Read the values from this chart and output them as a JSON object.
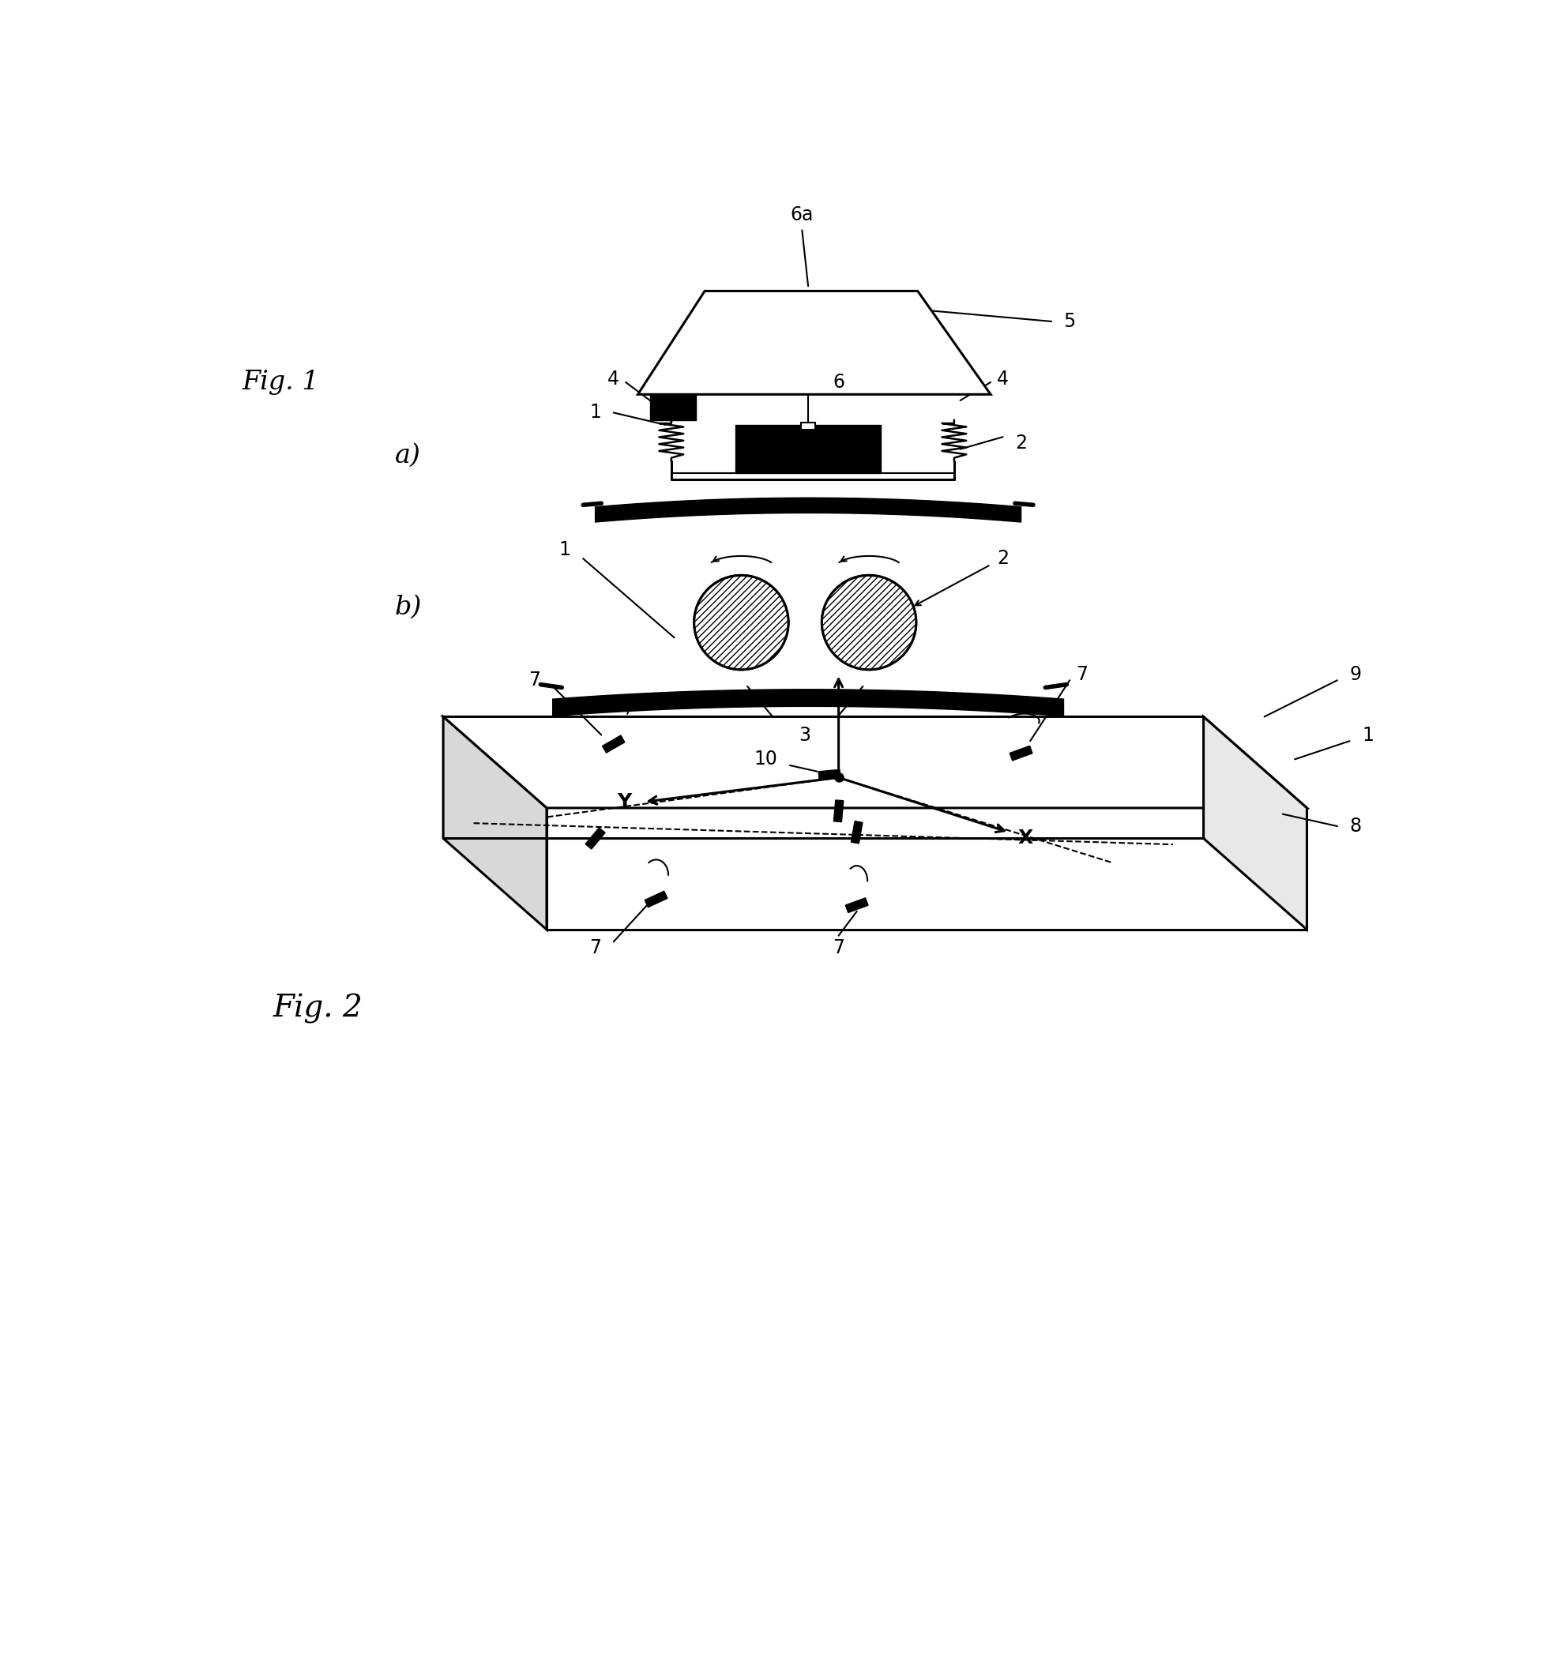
{
  "bg_color": "#ffffff",
  "line_color": "#000000",
  "fig_width": 19.85,
  "fig_height": 21.27,
  "fig1_label": "Fig. 1",
  "fig2_label": "Fig. 2",
  "label_a": "a)",
  "label_b": "b)"
}
